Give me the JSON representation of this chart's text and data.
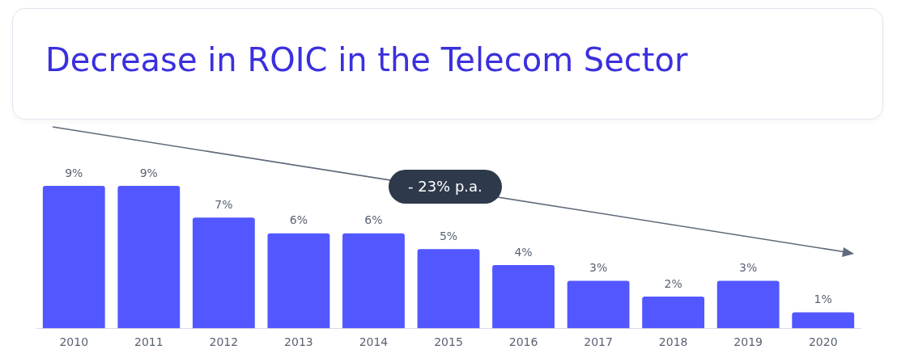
{
  "chart_data": {
    "type": "bar",
    "title": "Decrease in ROIC in the Telecom Sector",
    "categories": [
      "2010",
      "2011",
      "2012",
      "2013",
      "2014",
      "2015",
      "2016",
      "2017",
      "2018",
      "2019",
      "2020"
    ],
    "values": [
      9,
      9,
      7,
      6,
      6,
      5,
      4,
      3,
      2,
      3,
      1
    ],
    "value_labels": [
      "9%",
      "9%",
      "7%",
      "6%",
      "6%",
      "5%",
      "4%",
      "3%",
      "2%",
      "3%",
      "1%"
    ],
    "color": "#5257ff",
    "annotations": [
      "- 23% p.a."
    ],
    "grid": false,
    "legend": false
  }
}
